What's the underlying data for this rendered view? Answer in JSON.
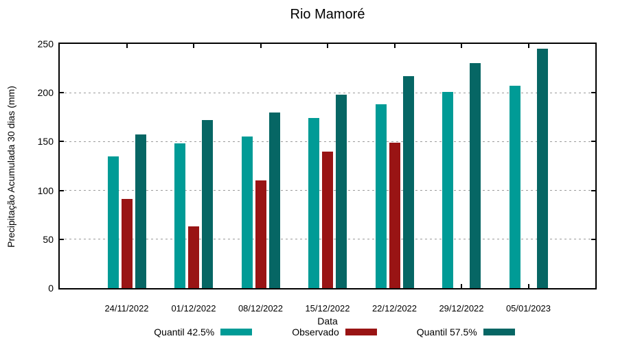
{
  "title": "Rio Mamoré",
  "chart_data": {
    "type": "bar",
    "title": "Rio Mamoré",
    "xlabel": "Data",
    "ylabel": "Precipitação Acumulada 30 dias (mm)",
    "ylim": [
      0,
      250
    ],
    "yticks": [
      0,
      50,
      100,
      150,
      200,
      250
    ],
    "grid": true,
    "grid_style": "dashed",
    "legend_position": "bottom",
    "categories": [
      "24/11/2022",
      "01/12/2022",
      "08/12/2022",
      "15/12/2022",
      "22/12/2022",
      "29/12/2022",
      "05/01/2023"
    ],
    "series": [
      {
        "name": "Quantil 42.5%",
        "color": "#009B96",
        "values": [
          135,
          148,
          155,
          174,
          188,
          201,
          207
        ]
      },
      {
        "name": "Observado",
        "color": "#991414",
        "values": [
          91,
          63,
          110,
          140,
          149,
          null,
          null
        ]
      },
      {
        "name": "Quantil 57.5%",
        "color": "#066664",
        "values": [
          157,
          172,
          180,
          198,
          217,
          230,
          245
        ]
      }
    ]
  },
  "colors": {
    "background": "#ffffff",
    "axis": "#000000",
    "grid": "#9a9a9a",
    "text": "#000000"
  }
}
